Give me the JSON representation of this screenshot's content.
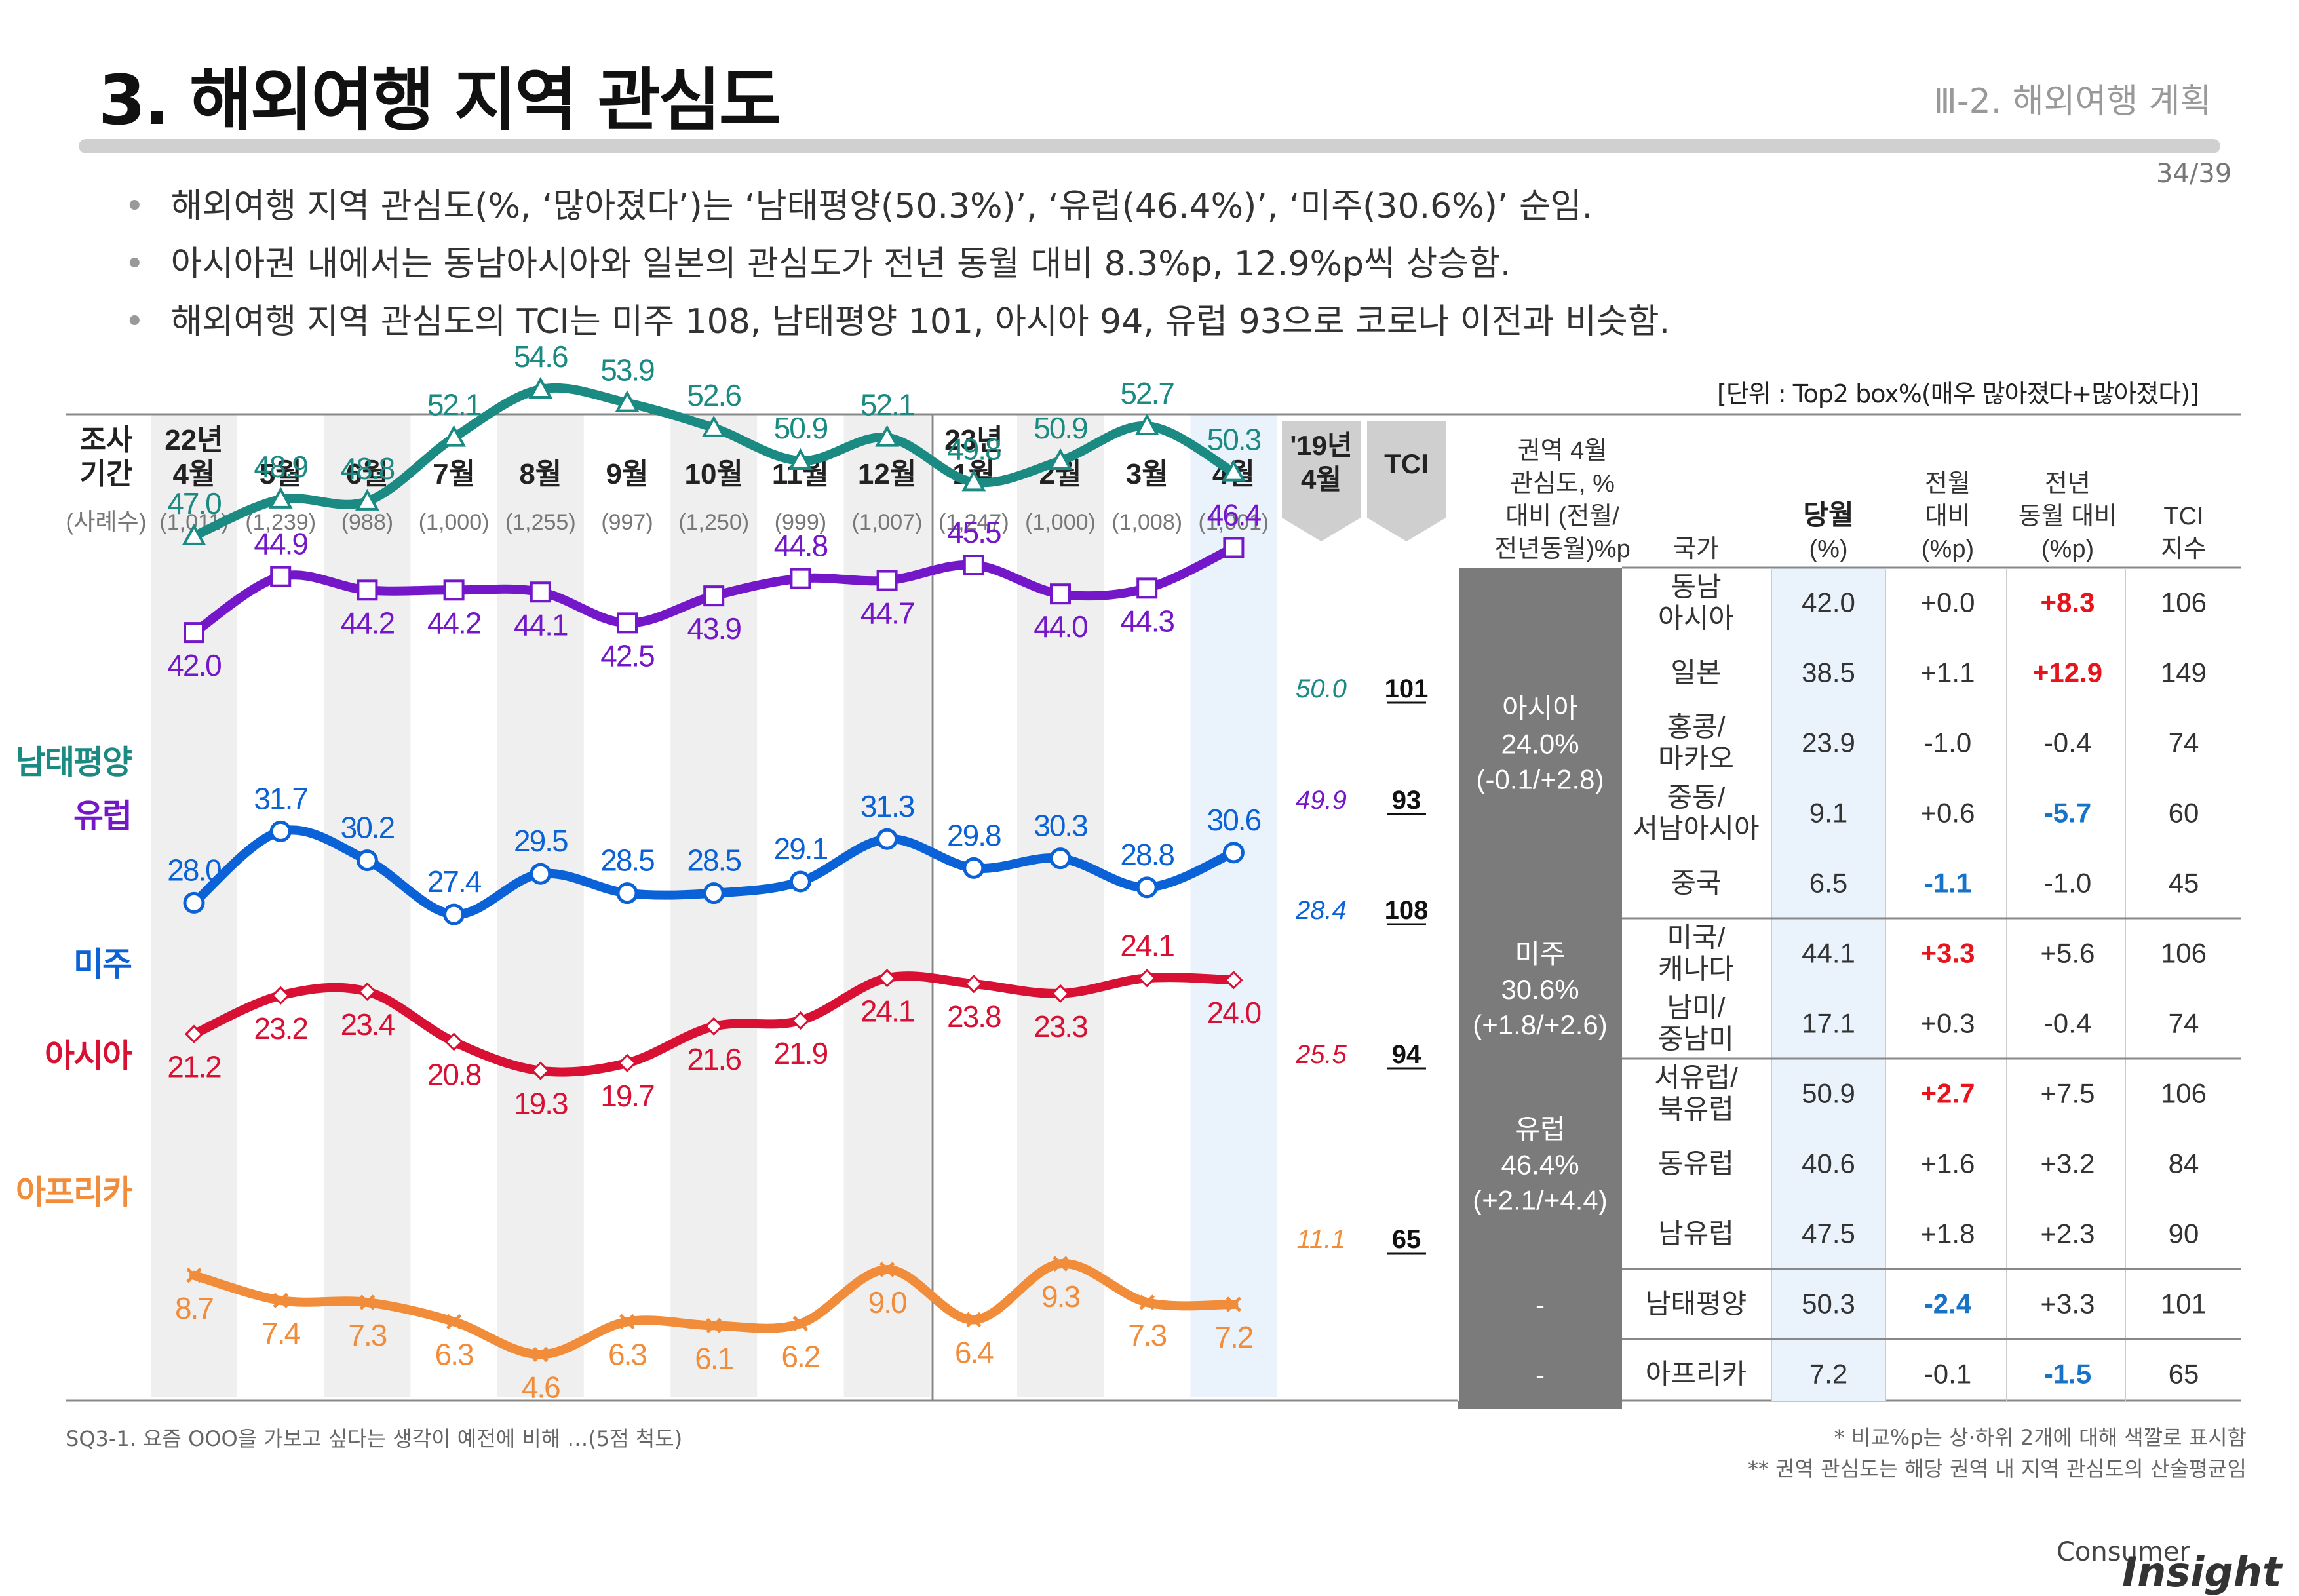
{
  "header": {
    "title": "3. 해외여행 지역 관심도",
    "section": "Ⅲ-2. 해외여행 계획",
    "page": "34/39"
  },
  "bullets": [
    "해외여행 지역 관심도(%, ‘많아졌다’)는 ‘남태평양(50.3%)’, ‘유럽(46.4%)’, ‘미주(30.6%)’ 순임.",
    "아시아권 내에서는 동남아시아와 일본의 관심도가 전년 동월 대비 8.3%p, 12.9%p씩 상승함.",
    "해외여행 지역 관심도의 TCI는 미주 108, 남태평양 101, 아시아 94, 유럽 93으로 코로나 이전과 비슷함."
  ],
  "unit_note": "[단위 : Top2 box%(매우 많아졌다+많아졌다)]",
  "chart_data": {
    "type": "line",
    "row_labels": {
      "period": [
        "조사",
        "기간"
      ],
      "sample": "(사례수)"
    },
    "categories": [
      {
        "year": "22년",
        "month": "4월",
        "n": "(1,011)"
      },
      {
        "year": "",
        "month": "5월",
        "n": "(1,239)"
      },
      {
        "year": "",
        "month": "6월",
        "n": "(988)"
      },
      {
        "year": "",
        "month": "7월",
        "n": "(1,000)"
      },
      {
        "year": "",
        "month": "8월",
        "n": "(1,255)"
      },
      {
        "year": "",
        "month": "9월",
        "n": "(997)"
      },
      {
        "year": "",
        "month": "10월",
        "n": "(1,250)"
      },
      {
        "year": "",
        "month": "11월",
        "n": "(999)"
      },
      {
        "year": "",
        "month": "12월",
        "n": "(1,007)"
      },
      {
        "year": "23년",
        "month": "1월",
        "n": "(1,247)"
      },
      {
        "year": "",
        "month": "2월",
        "n": "(1,000)"
      },
      {
        "year": "",
        "month": "3월",
        "n": "(1,008)"
      },
      {
        "year": "",
        "month": "4월",
        "n": "(1,001)"
      }
    ],
    "ref_header": [
      "'19년",
      "4월"
    ],
    "tci_header": "TCI",
    "series": [
      {
        "name": "남태평양",
        "color": "#1a8a83",
        "marker": "triangle",
        "values": [
          47.0,
          48.9,
          48.8,
          52.1,
          54.6,
          53.9,
          52.6,
          50.9,
          52.1,
          49.8,
          50.9,
          52.7,
          50.3
        ],
        "labels": [
          "47.0",
          "48.9",
          "48.8",
          "52.1",
          "54.6",
          "53.9",
          "52.6",
          "50.9",
          "52.1",
          "49.8",
          "50.9",
          "52.7",
          "50.3"
        ],
        "ref": "50.0",
        "tci": "101"
      },
      {
        "name": "유럽",
        "color": "#7417c9",
        "marker": "square",
        "values": [
          42.0,
          44.9,
          44.2,
          44.2,
          44.1,
          42.5,
          43.9,
          44.8,
          44.7,
          45.5,
          44.0,
          44.3,
          46.4
        ],
        "labels": [
          "42.0",
          "44.9",
          "44.2",
          "44.2",
          "44.1",
          "42.5",
          "43.9",
          "44.8",
          "44.7",
          "45.5",
          "44.0",
          "44.3",
          "46.4"
        ],
        "ref": "49.9",
        "tci": "93"
      },
      {
        "name": "미주",
        "color": "#0a62d6",
        "marker": "circle",
        "values": [
          28.0,
          31.7,
          30.2,
          27.4,
          29.5,
          28.5,
          28.5,
          29.1,
          31.3,
          29.8,
          30.3,
          28.8,
          30.6
        ],
        "labels": [
          "28.0",
          "31.7",
          "30.2",
          "27.4",
          "29.5",
          "28.5",
          "28.5",
          "29.1",
          "31.3",
          "29.8",
          "30.3",
          "28.8",
          "30.6"
        ],
        "ref": "28.4",
        "tci": "108"
      },
      {
        "name": "아시아",
        "color": "#d81134",
        "marker": "diamond",
        "values": [
          21.2,
          23.2,
          23.4,
          20.8,
          19.3,
          19.7,
          21.6,
          21.9,
          24.1,
          23.8,
          23.3,
          24.1,
          24.0
        ],
        "labels": [
          "21.2",
          "23.2",
          "23.4",
          "20.8",
          "19.3",
          "19.7",
          "21.6",
          "21.9",
          "24.1",
          "23.8",
          "23.3",
          "24.1",
          "24.0"
        ],
        "ref": "25.5",
        "tci": "94"
      },
      {
        "name": "아프리카",
        "color": "#f08c3a",
        "marker": "x",
        "values": [
          8.7,
          7.4,
          7.3,
          6.3,
          4.6,
          6.3,
          6.1,
          6.2,
          9.0,
          6.4,
          9.3,
          7.3,
          7.2
        ],
        "labels": [
          "8.7",
          "7.4",
          "7.3",
          "6.3",
          "4.6",
          "6.3",
          "6.1",
          "6.2",
          "9.0",
          "6.4",
          "9.3",
          "7.3",
          "7.2"
        ],
        "ref": "11.1",
        "tci": "65"
      }
    ]
  },
  "table": {
    "headers": {
      "region": "권역 4월 관심도, % 대비 (전월/ 전년동월)%p",
      "country": "국가",
      "current": [
        "당월",
        "(%)"
      ],
      "mom": [
        "전월",
        "대비",
        "(%p)"
      ],
      "yoy": [
        "전년",
        "동월 대비",
        "(%p)"
      ],
      "tci": [
        "TCI",
        "지수"
      ]
    },
    "groups": [
      {
        "label": [
          "아시아",
          "24.0%",
          "(-0.1/+2.8)"
        ],
        "rows": [
          {
            "country": [
              "동남",
              "아시아"
            ],
            "cur": "42.0",
            "mom": "+0.0",
            "momHL": "",
            "yoy": "+8.3",
            "yoyHL": "red",
            "tci": "106"
          },
          {
            "country": [
              "일본"
            ],
            "cur": "38.5",
            "mom": "+1.1",
            "momHL": "",
            "yoy": "+12.9",
            "yoyHL": "red",
            "tci": "149"
          },
          {
            "country": [
              "홍콩/",
              "마카오"
            ],
            "cur": "23.9",
            "mom": "-1.0",
            "momHL": "",
            "yoy": "-0.4",
            "yoyHL": "",
            "tci": "74"
          },
          {
            "country": [
              "중동/",
              "서남아시아"
            ],
            "cur": "9.1",
            "mom": "+0.6",
            "momHL": "",
            "yoy": "-5.7",
            "yoyHL": "blue",
            "tci": "60"
          },
          {
            "country": [
              "중국"
            ],
            "cur": "6.5",
            "mom": "-1.1",
            "momHL": "blue",
            "yoy": "-1.0",
            "yoyHL": "",
            "tci": "45"
          }
        ]
      },
      {
        "label": [
          "미주",
          "30.6%",
          "(+1.8/+2.6)"
        ],
        "rows": [
          {
            "country": [
              "미국/",
              "캐나다"
            ],
            "cur": "44.1",
            "mom": "+3.3",
            "momHL": "red",
            "yoy": "+5.6",
            "yoyHL": "",
            "tci": "106"
          },
          {
            "country": [
              "남미/",
              "중남미"
            ],
            "cur": "17.1",
            "mom": "+0.3",
            "momHL": "",
            "yoy": "-0.4",
            "yoyHL": "",
            "tci": "74"
          }
        ]
      },
      {
        "label": [
          "유럽",
          "46.4%",
          "(+2.1/+4.4)"
        ],
        "rows": [
          {
            "country": [
              "서유럽/",
              "북유럽"
            ],
            "cur": "50.9",
            "mom": "+2.7",
            "momHL": "red",
            "yoy": "+7.5",
            "yoyHL": "",
            "tci": "106"
          },
          {
            "country": [
              "동유럽"
            ],
            "cur": "40.6",
            "mom": "+1.6",
            "momHL": "",
            "yoy": "+3.2",
            "yoyHL": "",
            "tci": "84"
          },
          {
            "country": [
              "남유럽"
            ],
            "cur": "47.5",
            "mom": "+1.8",
            "momHL": "",
            "yoy": "+2.3",
            "yoyHL": "",
            "tci": "90"
          }
        ]
      },
      {
        "label": [
          "-"
        ],
        "rows": [
          {
            "country": [
              "남태평양"
            ],
            "cur": "50.3",
            "mom": "-2.4",
            "momHL": "blue",
            "yoy": "+3.3",
            "yoyHL": "",
            "tci": "101"
          }
        ]
      },
      {
        "label": [
          "-"
        ],
        "rows": [
          {
            "country": [
              "아프리카"
            ],
            "cur": "7.2",
            "mom": "-0.1",
            "momHL": "",
            "yoy": "-1.5",
            "yoyHL": "blue",
            "tci": "65"
          }
        ]
      }
    ]
  },
  "footer": {
    "question": "SQ3-1. 요즘 OOO을 가보고 싶다는 생각이 예전에 비해 …(5점 척도)",
    "note1": "* 비교%p는 상·하위 2개에 대해 색깔로 표시함",
    "note2": "** 권역 관심도는 해당 권역 내 지역 관심도의 산술평균임"
  },
  "brand": {
    "top": "Consumer",
    "main": "Insight"
  }
}
